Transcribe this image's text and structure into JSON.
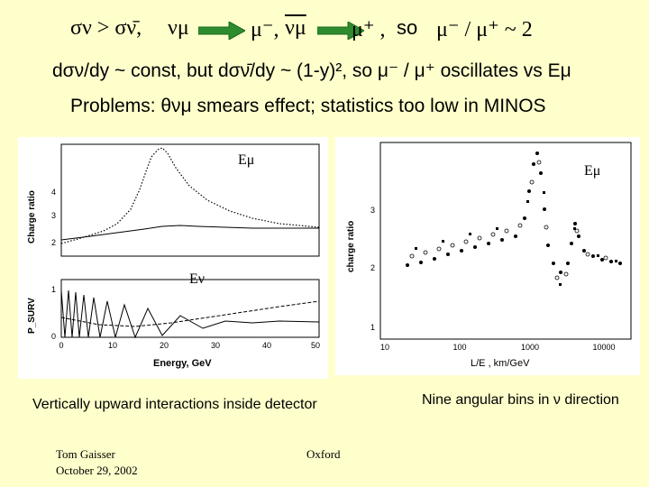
{
  "header": {
    "relation": "σν > σν̄,",
    "nu_mu": "νμ",
    "mu_minus": "μ⁻,",
    "nubar_mu": "νμ",
    "mu_plus": "μ⁺ ,",
    "so_word": "so",
    "ratio_expr": "μ⁻ / μ⁺ ~ 2"
  },
  "line2": {
    "text": "dσν/dy ~ const,  but  dσν̄/dy ~ (1-y)², so μ⁻ / μ⁺ oscillates vs Eμ"
  },
  "line3": {
    "text": "Problems: θνμ smears effect; statistics too low in MINOS"
  },
  "left_panel": {
    "label_emu": "Eμ",
    "label_enu": "Eν",
    "ylabel_top": "Charge ratio",
    "ylabel_bottom": "P_SURV",
    "xlabel": "Energy, GeV",
    "xticks": [
      "0",
      "10",
      "20",
      "30",
      "40",
      "50"
    ],
    "yticks_top": [
      "2",
      "3",
      "4"
    ],
    "yticks_bottom": [
      "0",
      "1"
    ],
    "caption": "Vertically upward interactions inside detector"
  },
  "right_panel": {
    "label_emu": "Eμ",
    "ylabel": "charge ratio",
    "xlabel": "L/E ,   km/GeV",
    "xticks": [
      "10",
      "100",
      "1000",
      "10000"
    ],
    "yticks": [
      "1",
      "2",
      "3"
    ],
    "caption": "Nine angular bins in ν direction"
  },
  "footer": {
    "author": "Tom Gaisser",
    "date": "October 29, 2002",
    "place": "Oxford"
  },
  "colors": {
    "background": "#ffffcc",
    "arrow": "#2e8b2e",
    "panel": "#ffffff"
  }
}
